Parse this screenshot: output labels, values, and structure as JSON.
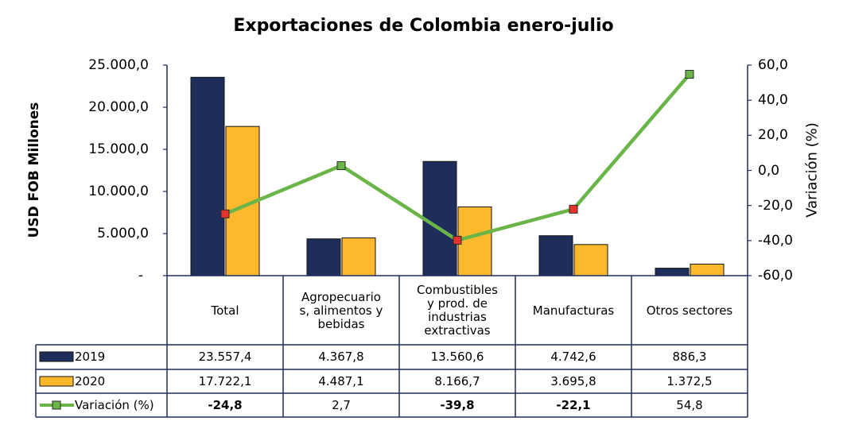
{
  "chart_data": {
    "type": "bar",
    "title": "Exportaciones de Colombia enero-julio",
    "ylabel": "USD FOB Millones",
    "y2label": "Variación (%)",
    "categories": [
      "Total",
      "Agropecuarios, alimentos y bebidas",
      "Combustibles y prod. de industrias extractivas",
      "Manufacturas",
      "Otros sectores"
    ],
    "category_lines": [
      [
        "Total"
      ],
      [
        "Agropecuario",
        "s, alimentos y",
        "bebidas"
      ],
      [
        "Combustibles",
        "y prod. de",
        "industrias",
        "extractivas"
      ],
      [
        "Manufacturas"
      ],
      [
        "Otros sectores"
      ]
    ],
    "ylim": [
      0,
      25000
    ],
    "y2lim": [
      -60,
      60
    ],
    "y_ticks": [
      "-",
      "5.000,0",
      "10.000,0",
      "15.000,0",
      "20.000,0",
      "25.000,0"
    ],
    "y2_ticks": [
      "-60,0",
      "-40,0",
      "-20,0",
      "0,0",
      "20,0",
      "40,0",
      "60,0"
    ],
    "series": [
      {
        "name": "2019",
        "type": "bar",
        "color": "#1f2d5a",
        "values": [
          23557.4,
          4367.8,
          13560.6,
          4742.6,
          886.3
        ],
        "labels": [
          "23.557,4",
          "4.367,8",
          "13.560,6",
          "4.742,6",
          "886,3"
        ]
      },
      {
        "name": "2020",
        "type": "bar",
        "color": "#fdb92e",
        "values": [
          17722.1,
          4487.1,
          8166.7,
          3695.8,
          1372.5
        ],
        "labels": [
          "17.722,1",
          "4.487,1",
          "8.166,7",
          "3.695,8",
          "1.372,5"
        ]
      },
      {
        "name": "Variación (%)",
        "type": "line",
        "axis": "right",
        "color": "#6ab547",
        "values": [
          -24.8,
          2.7,
          -39.8,
          -22.1,
          54.8
        ],
        "labels": [
          "-24,8",
          "2,7",
          "-39,8",
          "-22,1",
          "54,8"
        ],
        "marker_colors": [
          "#e8322c",
          "#6ab547",
          "#e8322c",
          "#e8322c",
          "#6ab547"
        ],
        "bold_labels": [
          true,
          false,
          true,
          true,
          false
        ]
      }
    ],
    "grid": false,
    "legend": "data table"
  }
}
